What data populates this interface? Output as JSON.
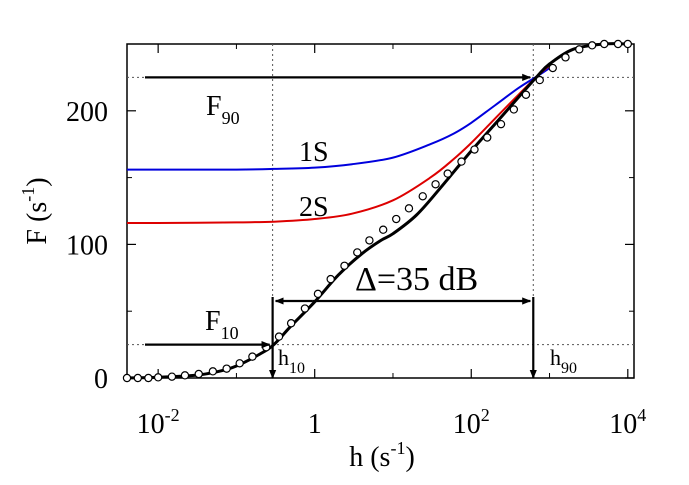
{
  "chart_data": {
    "type": "line",
    "xlabel": "h (s",
    "xlabel_sup": "-1",
    "xlabel_tail": ")",
    "ylabel": "F (s",
    "ylabel_sup": "-1",
    "ylabel_tail": ")",
    "x_scale": "log",
    "xlim": [
      0.004,
      12000
    ],
    "ylim": [
      0,
      250
    ],
    "x_ticks": [
      {
        "value": 0.01,
        "base": "10",
        "exp": "-2"
      },
      {
        "value": 1,
        "base": "1",
        "exp": ""
      },
      {
        "value": 100,
        "base": "10",
        "exp": "2"
      },
      {
        "value": 10000,
        "base": "10",
        "exp": "4"
      }
    ],
    "y_ticks": [
      {
        "value": 0,
        "label": "0"
      },
      {
        "value": 100,
        "label": "100"
      },
      {
        "value": 200,
        "label": "200"
      }
    ],
    "grid": false,
    "series": [
      {
        "name": "1S",
        "color": "#0000dd",
        "x": [
          0.004,
          0.01,
          0.1,
          0.3,
          1,
          3,
          10,
          30,
          60,
          100,
          200,
          400,
          700,
          1000
        ],
        "y": [
          156,
          156,
          156,
          156.5,
          157.5,
          160,
          165,
          175,
          183,
          191,
          204,
          217,
          226,
          232
        ]
      },
      {
        "name": "2S",
        "color": "#dd0000",
        "x": [
          0.004,
          0.01,
          0.1,
          0.3,
          1,
          3,
          10,
          30,
          60,
          100,
          200,
          400,
          700,
          1000
        ],
        "y": [
          116,
          116,
          116.5,
          117,
          119,
          123,
          133,
          150,
          164,
          176,
          194,
          212,
          226,
          234
        ]
      },
      {
        "name": "",
        "color": "#000000",
        "x": [
          0.004,
          0.01,
          0.03,
          0.06,
          0.1,
          0.2,
          0.3,
          0.5,
          1,
          2,
          4,
          7,
          10,
          20,
          40,
          100,
          200,
          400,
          700,
          1000,
          2000,
          5000,
          10000
        ],
        "y": [
          0,
          0.5,
          2,
          5,
          9,
          18,
          25,
          39,
          57,
          77,
          93,
          103,
          108,
          122,
          142,
          170,
          190,
          210,
          226,
          235,
          246,
          250,
          250
        ]
      }
    ],
    "markers": {
      "name": "",
      "x": [
        0.004,
        0.0055,
        0.0075,
        0.01,
        0.015,
        0.022,
        0.033,
        0.05,
        0.075,
        0.11,
        0.16,
        0.24,
        0.35,
        0.5,
        0.75,
        1.1,
        1.6,
        2.4,
        3.5,
        5,
        7.5,
        11,
        16,
        24,
        35,
        50,
        75,
        110,
        160,
        240,
        350,
        500,
        750,
        1100,
        1600,
        2400,
        3500,
        5000,
        7500,
        10000
      ],
      "y": [
        0,
        0,
        0,
        0.5,
        1,
        2,
        3,
        5,
        7,
        11,
        16,
        23,
        31,
        41,
        52,
        63,
        74,
        84,
        94,
        103,
        111,
        119,
        127,
        136,
        145,
        153,
        162,
        171,
        180,
        190,
        201,
        212,
        223,
        232,
        240,
        246,
        249,
        250,
        250,
        250
      ]
    },
    "reference_lines": {
      "F90": 225,
      "F10": 25,
      "h10": 0.29,
      "h90": 620
    },
    "annotations": {
      "F90": {
        "main": "F",
        "sub": "90"
      },
      "F10": {
        "main": "F",
        "sub": "10"
      },
      "h10": {
        "main": "h",
        "sub": "10"
      },
      "h90": {
        "main": "h",
        "sub": "90"
      },
      "label_1S": "1S",
      "label_2S": "2S",
      "delta": "Δ=35 dB"
    }
  }
}
